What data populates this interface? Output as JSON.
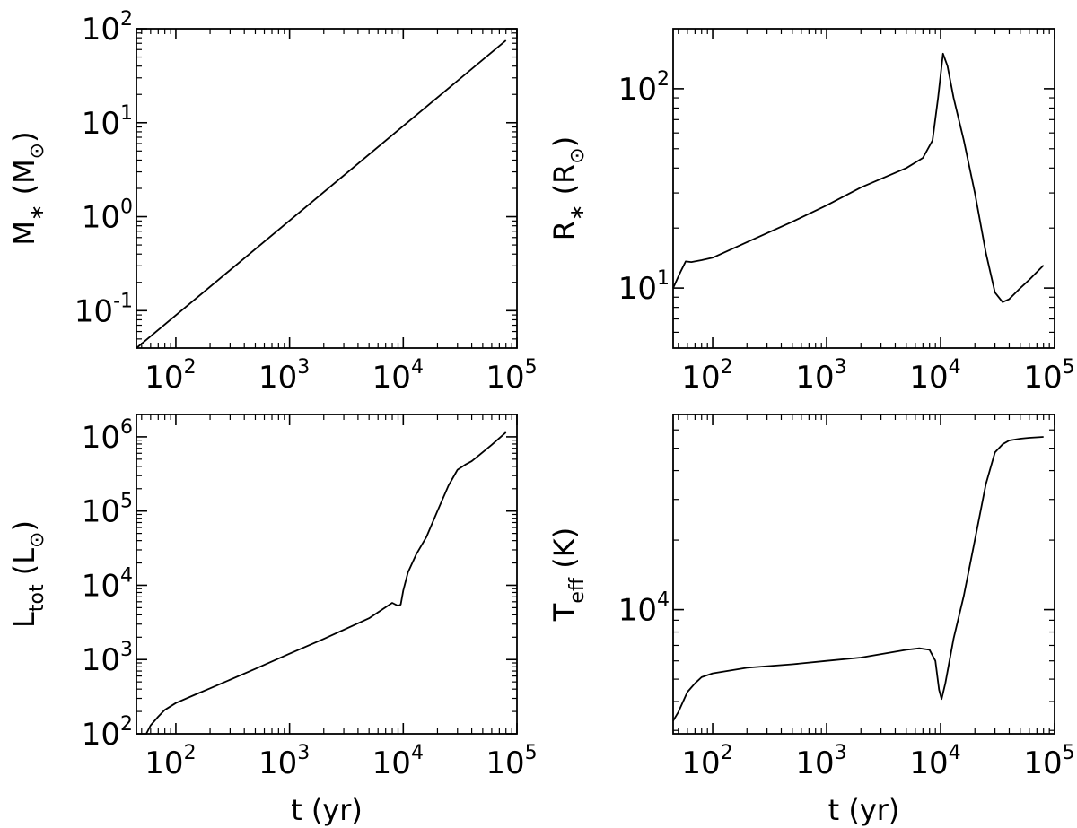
{
  "chart_data": [
    {
      "type": "line",
      "id": "mass",
      "xscale": "log",
      "yscale": "log",
      "xlim": [
        45,
        100000
      ],
      "ylim": [
        0.04,
        100
      ],
      "xticks": [
        100,
        1000,
        10000,
        100000
      ],
      "xtick_labels": [
        {
          "base": "10",
          "exp": "2"
        },
        {
          "base": "10",
          "exp": "3"
        },
        {
          "base": "10",
          "exp": "4"
        },
        {
          "base": "10",
          "exp": "5"
        }
      ],
      "yticks": [
        0.1,
        1,
        10,
        100
      ],
      "ytick_labels": [
        {
          "base": "10",
          "exp": "-1"
        },
        {
          "base": "10",
          "exp": "0"
        },
        {
          "base": "10",
          "exp": "1"
        },
        {
          "base": "10",
          "exp": "2"
        }
      ],
      "xlabel": "",
      "ylabel": {
        "main": "M",
        "sub": "∗",
        "unit_open": " (M",
        "unit_sub": "⊙",
        "unit_close": ")"
      },
      "x": [
        45,
        80000
      ],
      "y": [
        0.04,
        75
      ]
    },
    {
      "type": "line",
      "id": "radius",
      "xscale": "log",
      "yscale": "log",
      "xlim": [
        45,
        100000
      ],
      "ylim": [
        5,
        200
      ],
      "xticks": [
        100,
        1000,
        10000,
        100000
      ],
      "xtick_labels": [
        {
          "base": "10",
          "exp": "2"
        },
        {
          "base": "10",
          "exp": "3"
        },
        {
          "base": "10",
          "exp": "4"
        },
        {
          "base": "10",
          "exp": "5"
        }
      ],
      "yticks": [
        10,
        100
      ],
      "ytick_labels": [
        {
          "base": "10",
          "exp": "1"
        },
        {
          "base": "10",
          "exp": "2"
        }
      ],
      "xlabel": "",
      "ylabel": {
        "main": "R",
        "sub": "∗",
        "unit_open": " (R",
        "unit_sub": "⊙",
        "unit_close": ")"
      },
      "x": [
        45,
        52,
        58,
        65,
        80,
        100,
        200,
        500,
        1000,
        2000,
        5000,
        7000,
        8500,
        9500,
        10500,
        11500,
        13000,
        16000,
        20000,
        25000,
        30000,
        35000,
        40000,
        50000,
        60000,
        80000
      ],
      "y": [
        10,
        12,
        13.6,
        13.5,
        13.8,
        14.2,
        17,
        21.5,
        26,
        32,
        40,
        45,
        55,
        90,
        150,
        130,
        90,
        55,
        30,
        15,
        9.5,
        8.5,
        8.8,
        10,
        11,
        13
      ]
    },
    {
      "type": "line",
      "id": "luminosity",
      "xscale": "log",
      "yscale": "log",
      "xlim": [
        45,
        100000
      ],
      "ylim": [
        100,
        2000000
      ],
      "xticks": [
        100,
        1000,
        10000,
        100000
      ],
      "xtick_labels": [
        {
          "base": "10",
          "exp": "2"
        },
        {
          "base": "10",
          "exp": "3"
        },
        {
          "base": "10",
          "exp": "4"
        },
        {
          "base": "10",
          "exp": "5"
        }
      ],
      "yticks": [
        100,
        1000,
        10000,
        100000,
        1000000
      ],
      "ytick_labels": [
        {
          "base": "10",
          "exp": "2"
        },
        {
          "base": "10",
          "exp": "3"
        },
        {
          "base": "10",
          "exp": "4"
        },
        {
          "base": "10",
          "exp": "5"
        },
        {
          "base": "10",
          "exp": "6"
        }
      ],
      "xlabel": {
        "main": "t (yr)"
      },
      "ylabel": {
        "main": "L",
        "sub": "tot",
        "unit_open": " (L",
        "unit_sub": "⊙",
        "unit_close": ")"
      },
      "x": [
        55,
        60,
        70,
        80,
        100,
        150,
        200,
        500,
        1000,
        2000,
        5000,
        8000,
        9000,
        9500,
        10000,
        11000,
        13000,
        16000,
        20000,
        25000,
        30000,
        35000,
        40000,
        50000,
        60000,
        80000
      ],
      "y": [
        100,
        130,
        170,
        210,
        260,
        340,
        410,
        750,
        1200,
        1900,
        3600,
        5800,
        5300,
        5500,
        8500,
        15000,
        26000,
        45000,
        100000,
        220000,
        360000,
        420000,
        470000,
        620000,
        780000,
        1150000
      ]
    },
    {
      "type": "line",
      "id": "temperature",
      "xscale": "log",
      "yscale": "log",
      "xlim": [
        45,
        100000
      ],
      "ylim": [
        2900,
        70000
      ],
      "xticks": [
        100,
        1000,
        10000,
        100000
      ],
      "xtick_labels": [
        {
          "base": "10",
          "exp": "2"
        },
        {
          "base": "10",
          "exp": "3"
        },
        {
          "base": "10",
          "exp": "4"
        },
        {
          "base": "10",
          "exp": "5"
        }
      ],
      "yticks": [
        10000
      ],
      "ytick_labels": [
        {
          "base": "10",
          "exp": "4"
        }
      ],
      "xlabel": {
        "main": "t (yr)"
      },
      "ylabel": {
        "main": "T",
        "sub": "eff",
        "unit_open": " (K)",
        "unit_sub": "",
        "unit_close": ""
      },
      "x": [
        45,
        50,
        55,
        60,
        70,
        80,
        100,
        200,
        500,
        1000,
        2000,
        5000,
        6500,
        8000,
        9000,
        9700,
        10200,
        11000,
        13000,
        16000,
        20000,
        25000,
        30000,
        35000,
        40000,
        50000,
        60000,
        80000
      ],
      "y": [
        3300,
        3600,
        4000,
        4400,
        4800,
        5100,
        5300,
        5600,
        5800,
        6000,
        6200,
        6700,
        6800,
        6700,
        6000,
        4500,
        4100,
        4800,
        7500,
        11500,
        20000,
        35000,
        48000,
        52000,
        54000,
        55000,
        55500,
        56000
      ]
    }
  ]
}
